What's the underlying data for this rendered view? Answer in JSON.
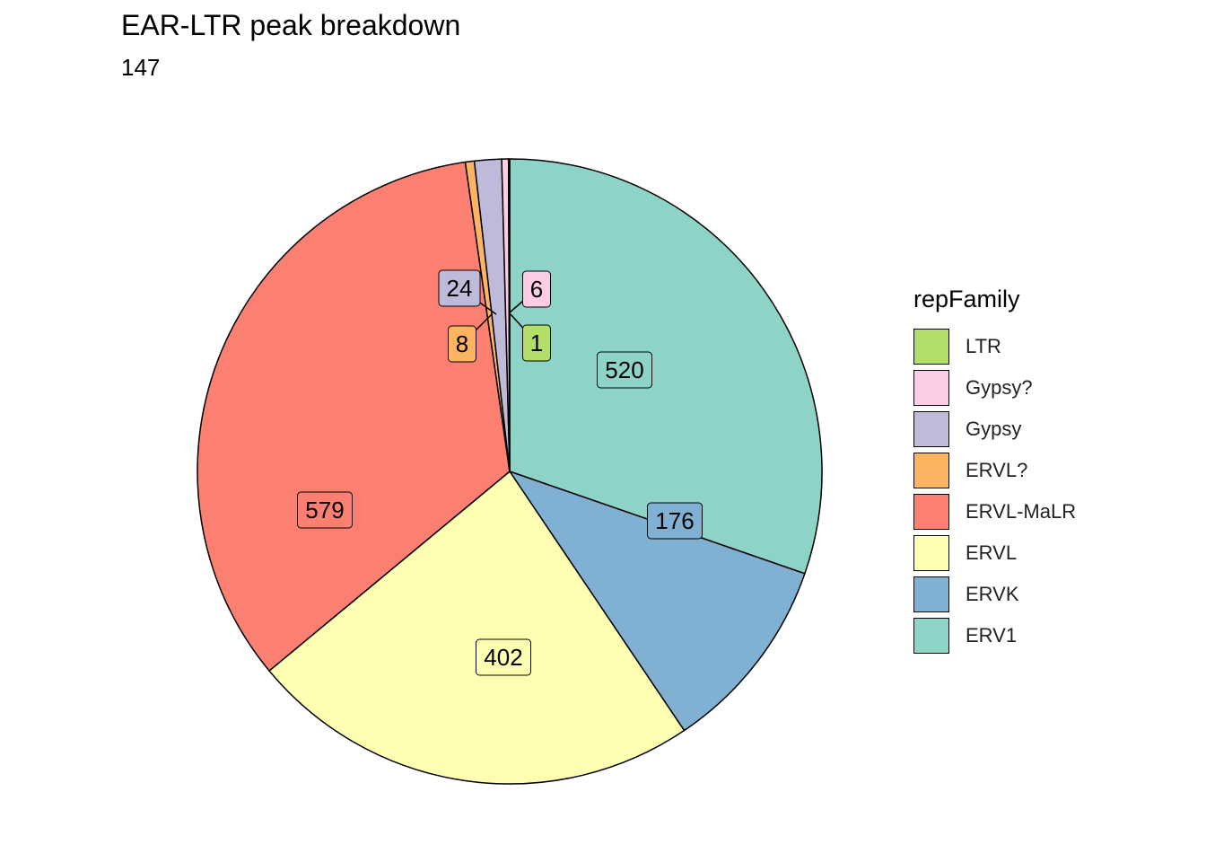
{
  "chart_data": {
    "type": "pie",
    "title": "EAR-LTR peak breakdown",
    "subtitle": "147",
    "legend_title": "repFamily",
    "legend_position": "right",
    "slices": [
      {
        "label": "ERV1",
        "value": 520,
        "color": "#8DD3C7"
      },
      {
        "label": "ERVK",
        "value": 176,
        "color": "#80B1D3"
      },
      {
        "label": "ERVL",
        "value": 402,
        "color": "#FFFFB3"
      },
      {
        "label": "ERVL-MaLR",
        "value": 579,
        "color": "#FB8072"
      },
      {
        "label": "ERVL?",
        "value": 8,
        "color": "#FDB462"
      },
      {
        "label": "Gypsy",
        "value": 24,
        "color": "#BEBADA"
      },
      {
        "label": "Gypsy?",
        "value": 6,
        "color": "#FCCDE5"
      },
      {
        "label": "LTR",
        "value": 1,
        "color": "#B3DE69"
      }
    ],
    "legend_order": [
      "LTR",
      "Gypsy?",
      "Gypsy",
      "ERVL?",
      "ERVL-MaLR",
      "ERVL",
      "ERVK",
      "ERV1"
    ]
  }
}
